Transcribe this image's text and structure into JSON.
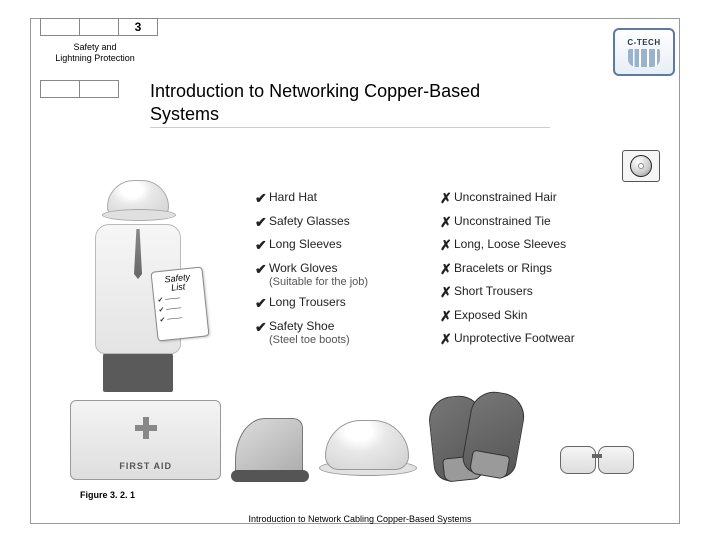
{
  "header": {
    "chapter_number": "3",
    "section_label": "Safety and Lightning Protection",
    "title": "Introduction to Networking Copper-Based Systems",
    "logo_text": "C-TECH",
    "logo_border_color": "#5a7ba8"
  },
  "clipboard": {
    "title_line1": "Safety",
    "title_line2": "List"
  },
  "firstaid_label": "FIRST AID",
  "checklist_good": [
    {
      "label": "Hard Hat"
    },
    {
      "label": "Safety Glasses"
    },
    {
      "label": "Long Sleeves"
    },
    {
      "label": "Work Gloves",
      "sub": "(Suitable for the job)"
    },
    {
      "label": "Long Trousers"
    },
    {
      "label": "Safety Shoe",
      "sub": "(Steel toe boots)"
    }
  ],
  "checklist_bad": [
    {
      "label": "Unconstrained Hair"
    },
    {
      "label": "Unconstrained Tie"
    },
    {
      "label": "Long, Loose Sleeves"
    },
    {
      "label": "Bracelets or Rings"
    },
    {
      "label": "Short Trousers"
    },
    {
      "label": "Exposed Skin"
    },
    {
      "label": "Unprotective Footwear"
    }
  ],
  "marks": {
    "check": "✔",
    "cross": "✗"
  },
  "figure_caption": "Figure 3. 2. 1",
  "footer": "Introduction to Network Cabling Copper-Based Systems",
  "style": {
    "title_fontsize": 18,
    "list_fontsize": 12,
    "caption_fontsize": 9,
    "footer_fontsize": 9,
    "text_color": "#222222",
    "background": "#ffffff"
  }
}
